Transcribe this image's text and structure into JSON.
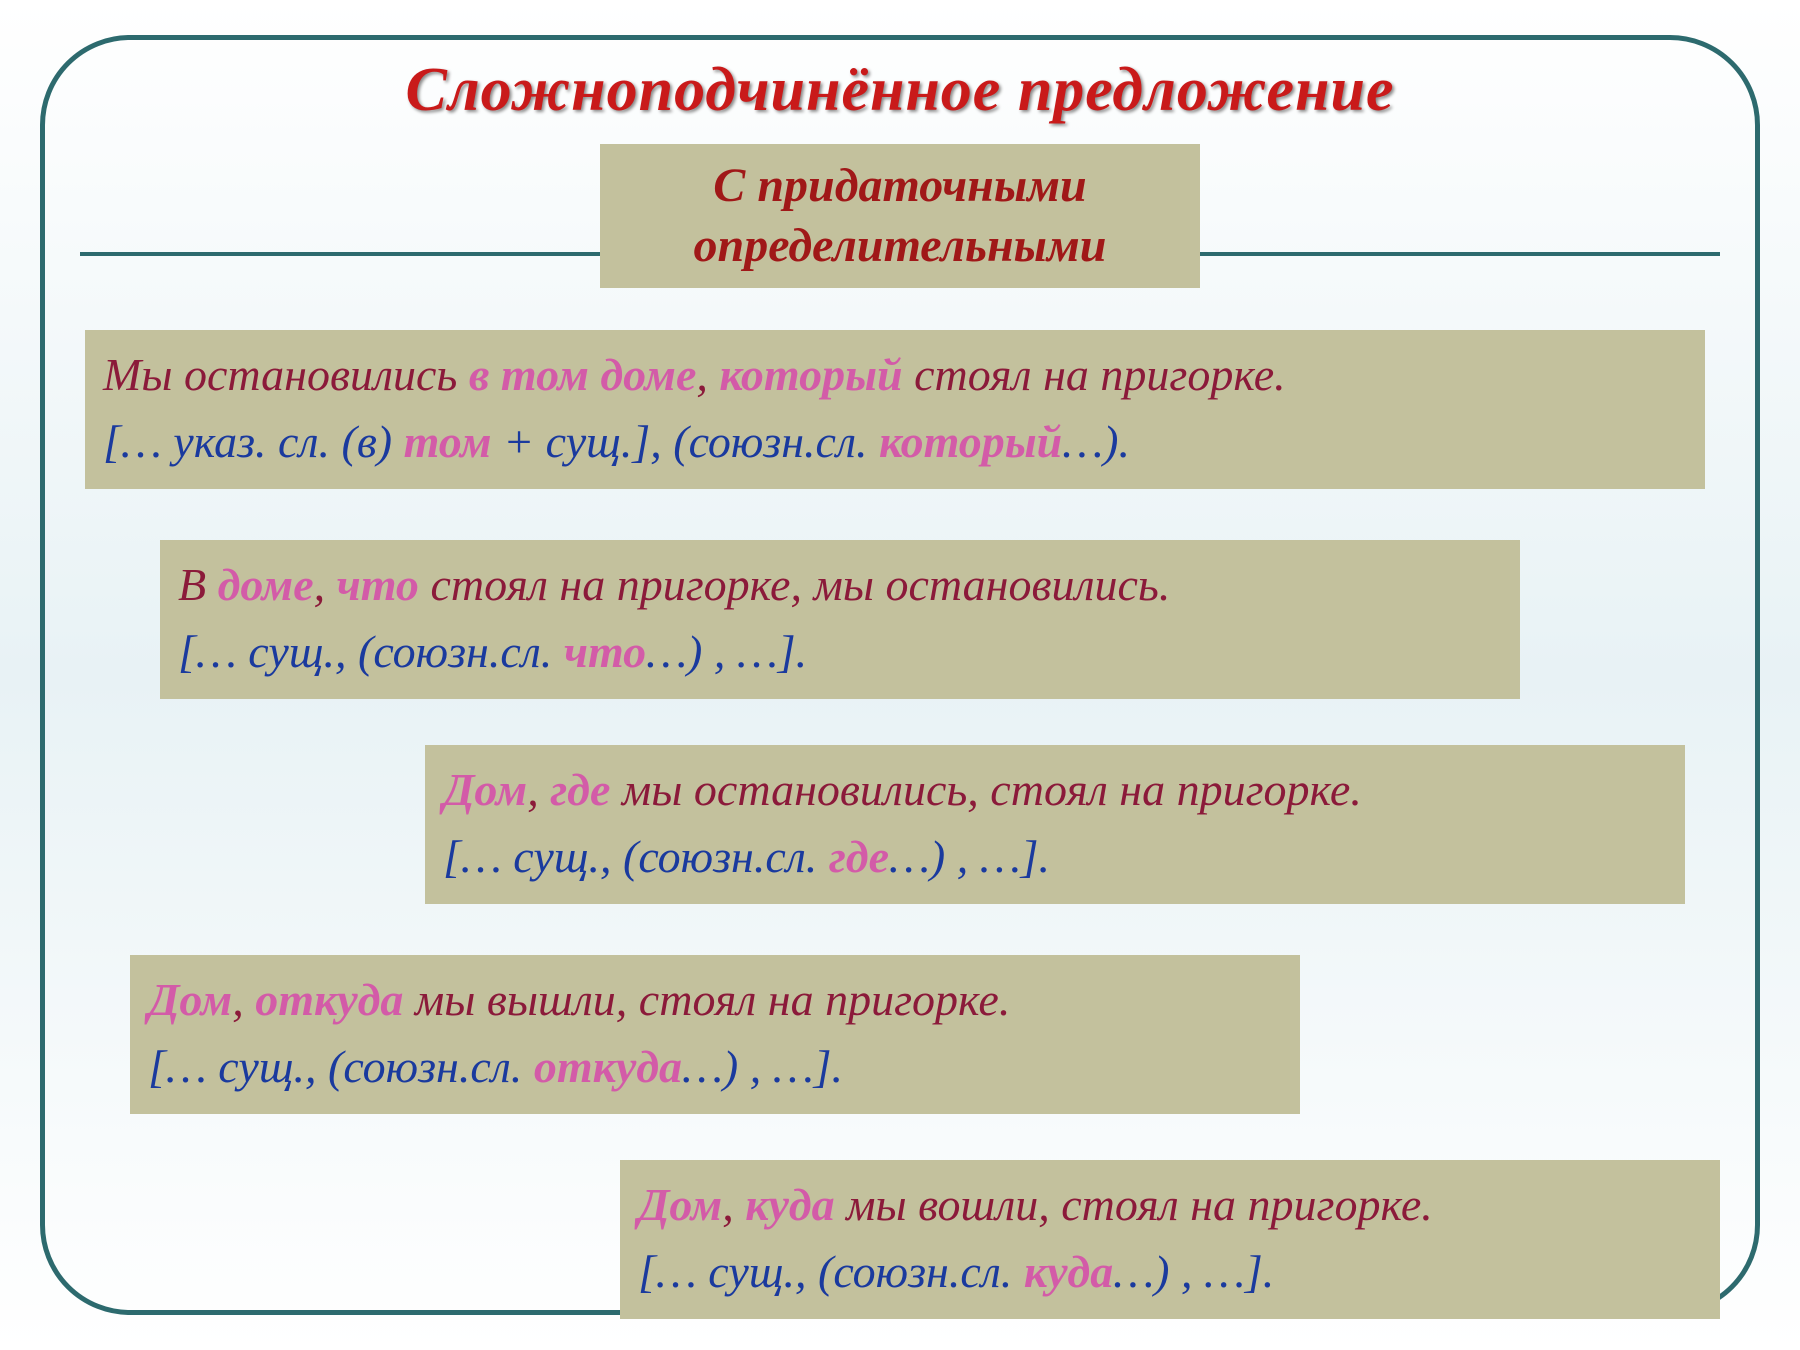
{
  "colors": {
    "border": "#2d6a6e",
    "box_bg": "#c3c19d",
    "title": "#c91a1a",
    "subtitle": "#a01818",
    "crimson": "#8b1a3a",
    "pink": "#d35ba8",
    "blue": "#1a3a9e",
    "bg_gradient_mid": "#e8f2f5"
  },
  "fontsize": {
    "title": 62,
    "subtitle": 48,
    "body": 46
  },
  "title": "Сложноподчинённое предложение",
  "subtitle_l1": "С придаточными",
  "subtitle_l2": "определительными",
  "boxes": [
    {
      "line1": [
        {
          "c": "crim",
          "t": "Мы остановились "
        },
        {
          "c": "pink",
          "t": "в том доме"
        },
        {
          "c": "crim",
          "t": ", "
        },
        {
          "c": "pink",
          "t": "который"
        },
        {
          "c": "crim",
          "t": " стоял на пригорке."
        }
      ],
      "line2": [
        {
          "c": "blue",
          "t": "[… указ. сл. (в) "
        },
        {
          "c": "pink",
          "t": "том"
        },
        {
          "c": "blue",
          "t": " + сущ.], (союзн.сл. "
        },
        {
          "c": "pink",
          "t": "который"
        },
        {
          "c": "blue",
          "t": "…)."
        }
      ]
    },
    {
      "line1": [
        {
          "c": "crim",
          "t": "В "
        },
        {
          "c": "pink",
          "t": "доме"
        },
        {
          "c": "crim",
          "t": ", "
        },
        {
          "c": "pink",
          "t": "что"
        },
        {
          "c": "crim",
          "t": " стоял на пригорке, мы остановились."
        }
      ],
      "line2": [
        {
          "c": "blue",
          "t": "[… сущ., (союзн.сл. "
        },
        {
          "c": "pink",
          "t": "что"
        },
        {
          "c": "blue",
          "t": "…) , …]."
        }
      ]
    },
    {
      "line1": [
        {
          "c": "pink",
          "t": "Дом"
        },
        {
          "c": "crim",
          "t": ", "
        },
        {
          "c": "pink",
          "t": "где"
        },
        {
          "c": "crim",
          "t": " мы остановились, стоял на пригорке."
        }
      ],
      "line2": [
        {
          "c": "blue",
          "t": "[… сущ., (союзн.сл. "
        },
        {
          "c": "pink",
          "t": "где"
        },
        {
          "c": "blue",
          "t": "…) , …]."
        }
      ]
    },
    {
      "line1": [
        {
          "c": "pink",
          "t": "Дом"
        },
        {
          "c": "crim",
          "t": ", "
        },
        {
          "c": "pink",
          "t": "откуда"
        },
        {
          "c": "crim",
          "t": " мы вышли, стоял на пригорке."
        }
      ],
      "line2": [
        {
          "c": "blue",
          "t": "[… сущ., (союзн.сл. "
        },
        {
          "c": "pink",
          "t": "откуда"
        },
        {
          "c": "blue",
          "t": "…) , …]."
        }
      ]
    },
    {
      "line1": [
        {
          "c": "pink",
          "t": "Дом"
        },
        {
          "c": "crim",
          "t": ", "
        },
        {
          "c": "pink",
          "t": "куда"
        },
        {
          "c": "crim",
          "t": " мы вошли, стоял на пригорке."
        }
      ],
      "line2": [
        {
          "c": "blue",
          "t": "[… сущ., (союзн.сл. "
        },
        {
          "c": "pink",
          "t": "куда"
        },
        {
          "c": "blue",
          "t": "…) , …]."
        }
      ]
    }
  ]
}
